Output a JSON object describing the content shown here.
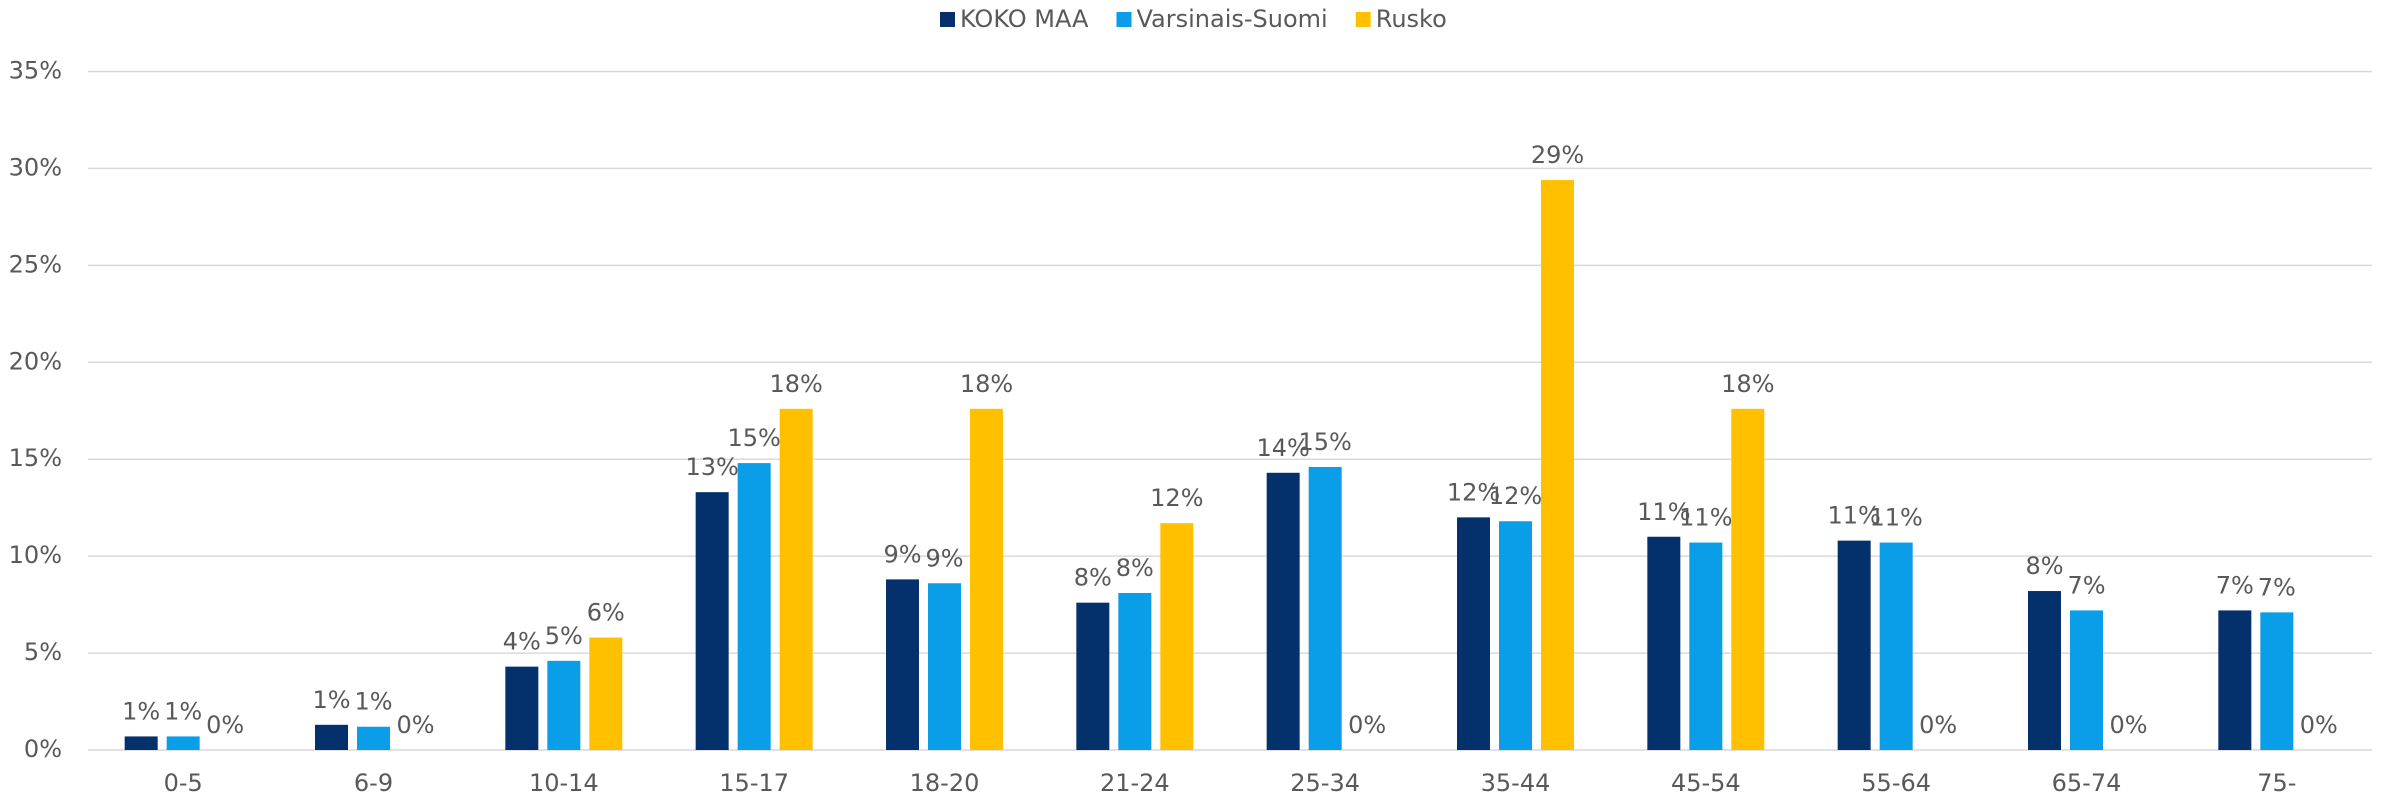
{
  "chart_data": {
    "type": "bar",
    "categories": [
      "0-5",
      "6-9",
      "10-14",
      "15-17",
      "18-20",
      "21-24",
      "25-34",
      "35-44",
      "45-54",
      "55-64",
      "65-74",
      "75-"
    ],
    "series": [
      {
        "name": "KOKO MAA",
        "color": "#04306b",
        "values": [
          0.7,
          1.3,
          4.3,
          13.3,
          8.8,
          7.6,
          14.3,
          12.0,
          11.0,
          10.8,
          8.2,
          7.2
        ],
        "value_labels": [
          "1%",
          "1%",
          "4%",
          "13%",
          "9%",
          "8%",
          "14%",
          "12%",
          "11%",
          "11%",
          "8%",
          "7%"
        ]
      },
      {
        "name": "Varsinais-Suomi",
        "color": "#0a9de8",
        "values": [
          0.7,
          1.2,
          4.6,
          14.8,
          8.6,
          8.1,
          14.6,
          11.8,
          10.7,
          10.7,
          7.2,
          7.1
        ],
        "value_labels": [
          "1%",
          "1%",
          "5%",
          "15%",
          "9%",
          "8%",
          "15%",
          "12%",
          "11%",
          "11%",
          "7%",
          "7%"
        ]
      },
      {
        "name": "Rusko",
        "color": "#ffc000",
        "values": [
          0,
          0,
          5.8,
          17.6,
          17.6,
          11.7,
          0,
          29.4,
          17.6,
          0,
          0,
          0
        ],
        "value_labels": [
          "0%",
          "0%",
          "6%",
          "18%",
          "18%",
          "12%",
          "0%",
          "29%",
          "18%",
          "0%",
          "0%",
          "0%"
        ]
      }
    ],
    "ylim": [
      0,
      35
    ],
    "yticks": [
      {
        "value": 0,
        "label": "0%"
      },
      {
        "value": 5,
        "label": "5%"
      },
      {
        "value": 10,
        "label": "10%"
      },
      {
        "value": 15,
        "label": "15%"
      },
      {
        "value": 20,
        "label": "20%"
      },
      {
        "value": 25,
        "label": "25%"
      },
      {
        "value": 30,
        "label": "30%"
      },
      {
        "value": 35,
        "label": "35%"
      }
    ],
    "grid": true,
    "legend": "top"
  }
}
